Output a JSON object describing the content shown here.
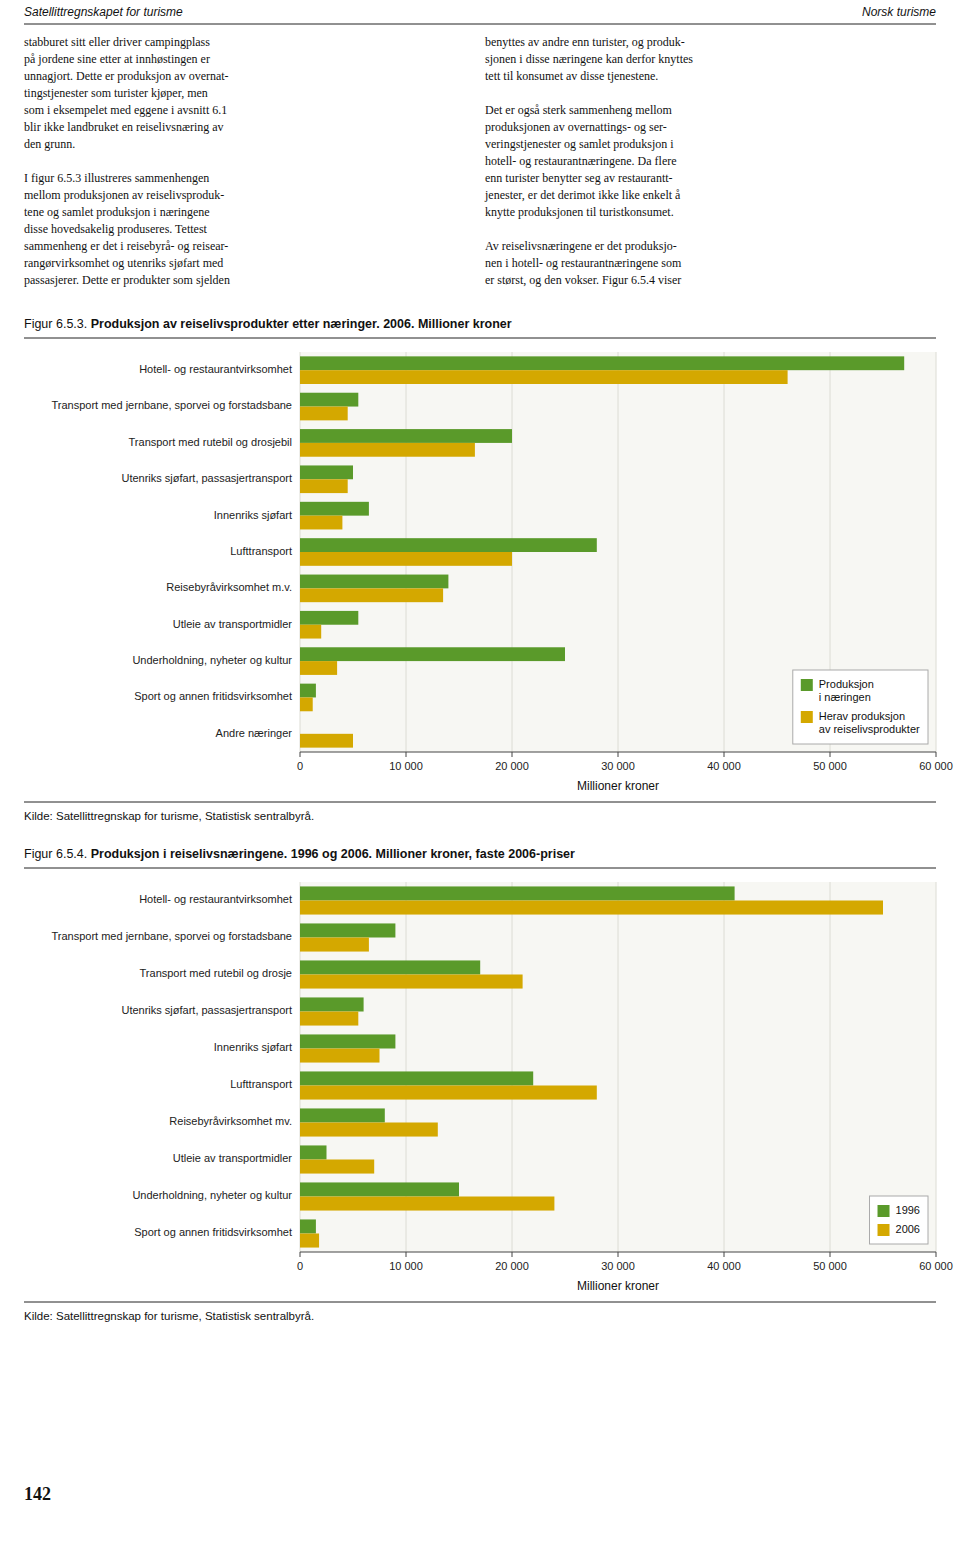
{
  "page": {
    "header_left": "Satellittregnskapet for turisme",
    "header_right": "Norsk turisme",
    "body_left": "stabburet sitt eller driver campingplass\npå jordene sine etter at innhøstingen er\nunnagjort. Dette er produksjon av overnat-\ntingstjenester som turister kjøper, men\nsom i eksempelet med eggene i avsnitt 6.1\nblir ikke landbruket en reiselivsnæring av\nden grunn.\n\nI figur 6.5.3 illustreres sammenhengen\nmellom produksjonen av reiselivsproduk-\ntene og samlet produksjon i næringene\ndisse hovedsakelig produseres. Tettest\nsammenheng er det i reisebyrå- og reisear-\nrangørvirksomhet og utenriks sjøfart med\npassasjerer. Dette er produkter som sjelden",
    "body_right": "benyttes av andre enn turister, og produk-\nsjonen i disse næringene kan derfor knyttes\ntett til konsumet av disse tjenestene.\n\nDet er også sterk sammenheng mellom\nproduksjonen av overnattings- og ser-\nveringstjenester og samlet produksjon i\nhotell- og restaurantnæringene. Da flere\nenn turister benytter seg av restaurantt-\njenester, er det derimot ikke like enkelt å\nknytte produksjonen til turistkonsumet.\n\nAv reiselivsnæringene er det produksjo-\nnen i hotell- og restaurantnæringene som\ner størst, og den vokser. Figur 6.5.4 viser",
    "page_number": "142"
  },
  "chart_data": [
    {
      "type": "bar",
      "orientation": "horizontal",
      "title": "Figur 6.5.3. Produksjon av reiselivsprodukter etter næringer. 2006. Millioner kroner",
      "categories": [
        "Hotell- og restaurantvirksomhet",
        "Transport med jernbane, sporvei og forstadsbane",
        "Transport med rutebil og drosjebil",
        "Utenriks sjøfart, passasjertransport",
        "Innenriks sjøfart",
        "Lufttransport",
        "Reisebyråvirksomhet m.v.",
        "Utleie av transportmidler",
        "Underholdning, nyheter og kultur",
        "Sport og annen fritidsvirksomhet",
        "Andre næringer"
      ],
      "series": [
        {
          "name": "Produksjon\ni næringen",
          "color": "#5a9a2a",
          "values": [
            57000,
            5500,
            20000,
            5000,
            6500,
            28000,
            14000,
            5500,
            25000,
            1500,
            0
          ]
        },
        {
          "name": "Herav produksjon\nav reiselivsprodukter",
          "color": "#d4a800",
          "values": [
            46000,
            4500,
            16500,
            4500,
            4000,
            20000,
            13500,
            2000,
            3500,
            1200,
            5000
          ]
        }
      ],
      "xlabel": "Millioner kroner",
      "xlim": [
        0,
        60000
      ],
      "xticks": [
        0,
        {
          "value": 10000,
          "label": "10 000"
        },
        {
          "value": 20000,
          "label": "20 000"
        },
        {
          "value": 30000,
          "label": "30 000"
        },
        {
          "value": 40000,
          "label": "40 000"
        },
        {
          "value": 50000,
          "label": "50 000"
        },
        {
          "value": 60000,
          "label": "60 000"
        }
      ],
      "grid": true,
      "legend": "lower right",
      "source": "Kilde: Satellittregnskap for turisme, Statistisk sentralbyrå."
    },
    {
      "type": "bar",
      "orientation": "horizontal",
      "title": "Figur 6.5.4. Produksjon i reiselivsnæringene. 1996 og 2006. Millioner kroner, faste 2006-priser",
      "categories": [
        "Hotell- og restaurantvirksomhet",
        "Transport med jernbane, sporvei og forstadsbane",
        "Transport med rutebil og drosje",
        "Utenriks sjøfart, passasjertransport",
        "Innenriks sjøfart",
        "Lufttransport",
        "Reisebyråvirksomhet mv.",
        "Utleie av transportmidler",
        "Underholdning, nyheter og kultur",
        "Sport og annen fritidsvirksomhet"
      ],
      "series": [
        {
          "name": "1996",
          "color": "#5a9a2a",
          "values": [
            41000,
            9000,
            17000,
            6000,
            9000,
            22000,
            8000,
            2500,
            15000,
            1500
          ]
        },
        {
          "name": "2006",
          "color": "#d4a800",
          "values": [
            55000,
            6500,
            21000,
            5500,
            7500,
            28000,
            13000,
            7000,
            24000,
            1800
          ]
        }
      ],
      "xlabel": "Millioner kroner",
      "xlim": [
        0,
        60000
      ],
      "xticks": [
        0,
        {
          "value": 10000,
          "label": "10 000"
        },
        {
          "value": 20000,
          "label": "20 000"
        },
        {
          "value": 30000,
          "label": "30 000"
        },
        {
          "value": 40000,
          "label": "40 000"
        },
        {
          "value": 50000,
          "label": "50 000"
        },
        {
          "value": 60000,
          "label": "60 000"
        }
      ],
      "grid": true,
      "legend": "lower right",
      "source": "Kilde: Satellittregnskap for turisme, Statistisk sentralbyrå."
    }
  ]
}
